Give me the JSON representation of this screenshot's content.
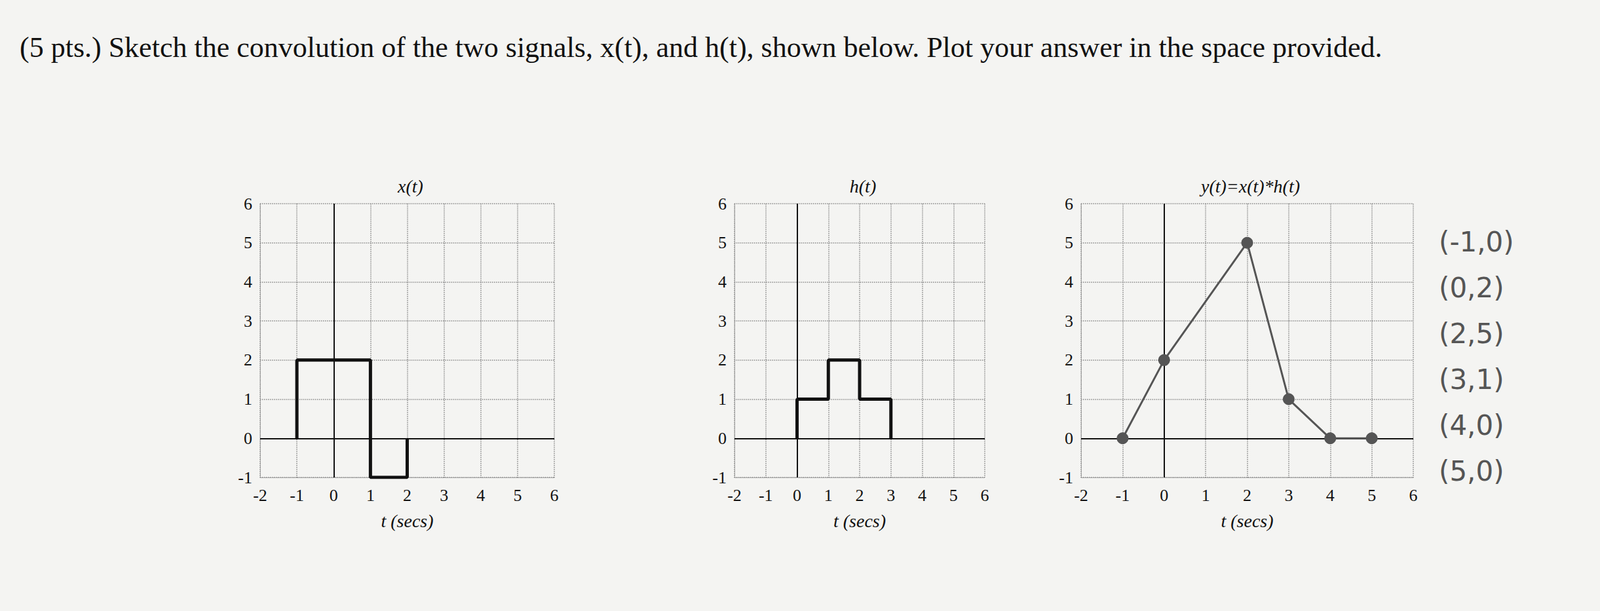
{
  "heading": "(5 pts.) Sketch the convolution of the two signals, x(t), and h(t), shown below. Plot your answer in the space provided.",
  "chart_data": [
    {
      "type": "line",
      "title": "x(t)",
      "x_label": "t (secs)",
      "x": [
        -1,
        -1,
        1,
        1,
        2,
        2
      ],
      "values": [
        0,
        2,
        2,
        -1,
        -1,
        0
      ],
      "xlim": [
        -2,
        6
      ],
      "ylim": [
        -1,
        6
      ],
      "xticks": [
        -2,
        -1,
        0,
        1,
        2,
        3,
        4,
        5,
        6
      ],
      "yticks": [
        -1,
        0,
        1,
        2,
        3,
        4,
        5,
        6
      ],
      "grid": true,
      "color": "#111111",
      "marker": "none",
      "line_style": "solid"
    },
    {
      "type": "line",
      "title": "h(t)",
      "x_label": "t (secs)",
      "x": [
        0,
        0,
        1,
        1,
        2,
        2,
        3,
        3
      ],
      "values": [
        0,
        1,
        1,
        2,
        2,
        1,
        1,
        0
      ],
      "xlim": [
        -2,
        6
      ],
      "ylim": [
        -1,
        6
      ],
      "xticks": [
        -2,
        -1,
        0,
        1,
        2,
        3,
        4,
        5,
        6
      ],
      "yticks": [
        -1,
        0,
        1,
        2,
        3,
        4,
        5,
        6
      ],
      "grid": true,
      "color": "#111111",
      "marker": "none",
      "line_style": "solid"
    },
    {
      "type": "line",
      "title": "y(t)=x(t)*h(t)",
      "x_label": "t (secs)",
      "x": [
        -1,
        0,
        2,
        3,
        4,
        5
      ],
      "values": [
        0,
        2,
        5,
        1,
        0,
        0
      ],
      "xlim": [
        -2,
        6
      ],
      "ylim": [
        -1,
        6
      ],
      "xticks": [
        -2,
        -1,
        0,
        1,
        2,
        3,
        4,
        5,
        6
      ],
      "yticks": [
        -1,
        0,
        1,
        2,
        3,
        4,
        5,
        6
      ],
      "grid": true,
      "color": "#555555",
      "marker": "circle",
      "line_style": "solid",
      "annotations": [
        "(-1,0)",
        "(0,2)",
        "(2,5)",
        "(3,1)",
        "(4,0)",
        "(5,0)"
      ]
    }
  ]
}
